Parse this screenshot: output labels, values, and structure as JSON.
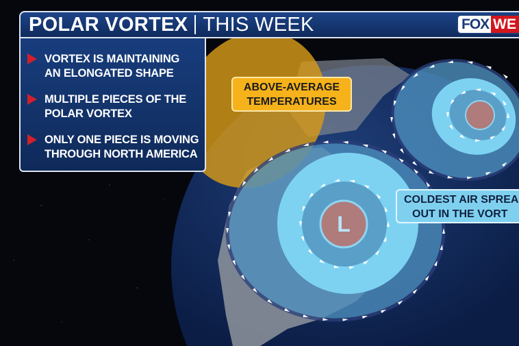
{
  "header": {
    "title": "POLAR VORTEX",
    "subtitle": "THIS WEEK"
  },
  "logo": {
    "part1": "FOX",
    "part2": "WE"
  },
  "bullets": [
    "VORTEX IS MAINTAINING AN ELONGATED SHAPE",
    "MULTIPLE PIECES OF THE POLAR VORTEX",
    "ONLY ONE PIECE IS MOVING THROUGH NORTH AMERICA"
  ],
  "map": {
    "warm_label_line1": "ABOVE-AVERAGE",
    "warm_label_line2": "TEMPERATURES",
    "cold_label_line1": "COLDEST AIR SPREA",
    "cold_label_line2": "OUT IN THE VORT",
    "low_symbol": "L",
    "colors": {
      "warm": "#f6b21b",
      "cold": "#7fd0ef",
      "low": "#b07b7b",
      "accent": "#d1202b",
      "brand": "#1c3b79"
    }
  }
}
